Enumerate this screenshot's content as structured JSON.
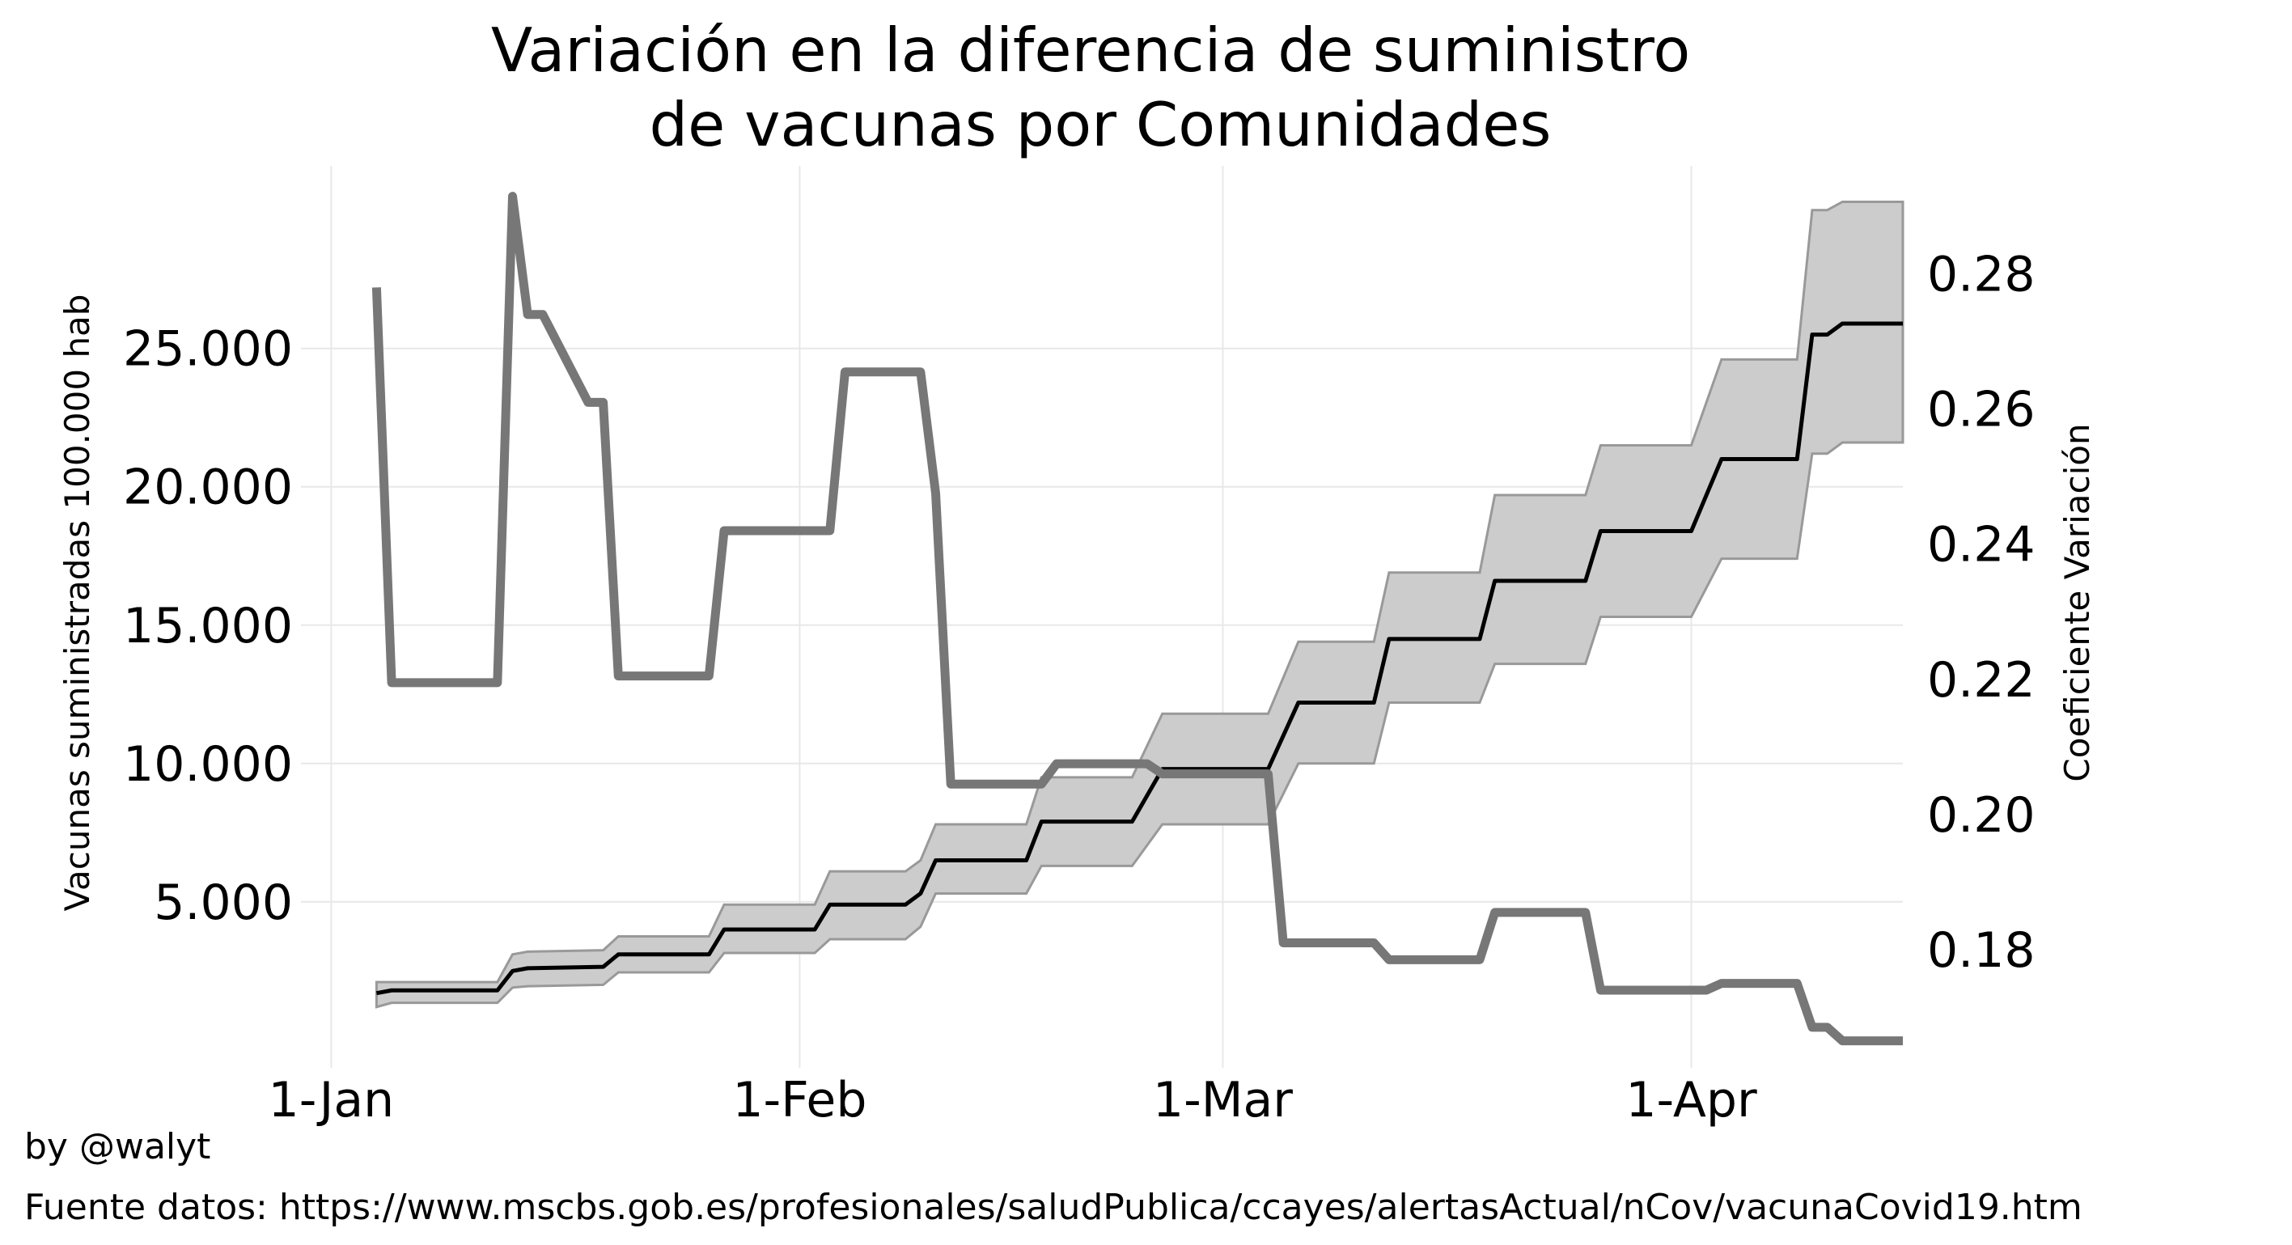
{
  "chart_data": {
    "type": "line",
    "title": "Variación en la diferencia de suministro\nde vacunas por Comunidades",
    "xlabel": "",
    "ylabel": "Vacunas suministradas 100.000 hab",
    "y2label": "Coeficiente Variación",
    "x_ticks": [
      "1-Jan",
      "1-Feb",
      "1-Mar",
      "1-Apr"
    ],
    "y_ticks": [
      "5.000",
      "10.000",
      "15.000",
      "20.000",
      "25.000"
    ],
    "y2_ticks": [
      "0.18",
      "0.20",
      "0.22",
      "0.24",
      "0.26",
      "0.28"
    ],
    "xlim": [
      -2,
      104
    ],
    "ylim": [
      -1000,
      31600
    ],
    "y2lim": [
      0.1625,
      0.296
    ],
    "grid": true,
    "colors": {
      "mean": "#000000",
      "band": "#cccccc",
      "band_edge": "#999999",
      "cv": "#777777"
    },
    "series": [
      {
        "axis": "left",
        "style": "mean line with band",
        "points": [
          [
            3,
            1700,
            1200,
            2100
          ],
          [
            4,
            1800,
            1350,
            2100
          ],
          [
            11,
            1800,
            1350,
            2100
          ],
          [
            12,
            2500,
            1900,
            3100
          ],
          [
            13,
            2600,
            1950,
            3200
          ],
          [
            18,
            2650,
            2000,
            3250
          ],
          [
            19,
            3100,
            2450,
            3750
          ],
          [
            25,
            3100,
            2450,
            3750
          ],
          [
            26,
            4000,
            3150,
            4900
          ],
          [
            32,
            4000,
            3150,
            4900
          ],
          [
            33,
            4900,
            3650,
            6100
          ],
          [
            38,
            4900,
            3650,
            6100
          ],
          [
            39,
            5300,
            4100,
            6500
          ],
          [
            40,
            6500,
            5300,
            7800
          ],
          [
            46,
            6500,
            5300,
            7800
          ],
          [
            47,
            7900,
            6300,
            9500
          ],
          [
            53,
            7900,
            6300,
            9500
          ],
          [
            55,
            9800,
            7800,
            11800
          ],
          [
            62,
            9800,
            7800,
            11800
          ],
          [
            64,
            12200,
            10000,
            14400
          ],
          [
            69,
            12200,
            10000,
            14400
          ],
          [
            70,
            14500,
            12200,
            16900
          ],
          [
            76,
            14500,
            12200,
            16900
          ],
          [
            77,
            16600,
            13600,
            19700
          ],
          [
            83,
            16600,
            13600,
            19700
          ],
          [
            84,
            18400,
            15300,
            21500
          ],
          [
            90,
            18400,
            15300,
            21500
          ],
          [
            92,
            21000,
            17400,
            24600
          ],
          [
            97,
            21000,
            17400,
            24600
          ],
          [
            98,
            25500,
            21200,
            30000
          ],
          [
            99,
            25500,
            21200,
            30000
          ],
          [
            100,
            25900,
            21600,
            30300
          ],
          [
            104,
            25900,
            21600,
            30300
          ]
        ]
      },
      {
        "axis": "right",
        "style": "thick gray line",
        "points": [
          [
            3,
            0.278
          ],
          [
            4,
            0.2195
          ],
          [
            11,
            0.2195
          ],
          [
            12,
            0.2915
          ],
          [
            13,
            0.274
          ],
          [
            14,
            0.274
          ],
          [
            17,
            0.261
          ],
          [
            18,
            0.261
          ],
          [
            19,
            0.2205
          ],
          [
            25,
            0.2205
          ],
          [
            26,
            0.242
          ],
          [
            33,
            0.242
          ],
          [
            34,
            0.2655
          ],
          [
            39,
            0.2655
          ],
          [
            40,
            0.2475
          ],
          [
            41,
            0.2045
          ],
          [
            47,
            0.2045
          ],
          [
            48,
            0.2075
          ],
          [
            54,
            0.2075
          ],
          [
            55,
            0.206
          ],
          [
            62,
            0.206
          ],
          [
            63,
            0.181
          ],
          [
            69,
            0.181
          ],
          [
            70,
            0.1785
          ],
          [
            76,
            0.1785
          ],
          [
            77,
            0.1855
          ],
          [
            83,
            0.1855
          ],
          [
            84,
            0.174
          ],
          [
            91,
            0.174
          ],
          [
            92,
            0.175
          ],
          [
            97,
            0.175
          ],
          [
            98,
            0.1685
          ],
          [
            99,
            0.1685
          ],
          [
            100,
            0.1665
          ],
          [
            104,
            0.1665
          ]
        ]
      }
    ]
  },
  "credits": {
    "author": "by @walyt",
    "source": "Fuente datos: https://www.mscbs.gob.es/profesionales/saludPublica/ccayes/alertasActual/nCov/vacunaCovid19.htm"
  }
}
